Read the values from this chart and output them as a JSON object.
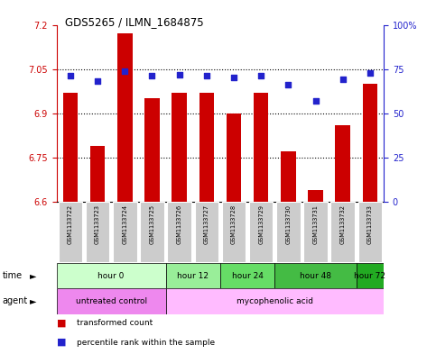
{
  "title": "GDS5265 / ILMN_1684875",
  "samples": [
    "GSM1133722",
    "GSM1133723",
    "GSM1133724",
    "GSM1133725",
    "GSM1133726",
    "GSM1133727",
    "GSM1133728",
    "GSM1133729",
    "GSM1133730",
    "GSM1133731",
    "GSM1133732",
    "GSM1133733"
  ],
  "bar_values": [
    6.97,
    6.79,
    7.17,
    6.95,
    6.97,
    6.97,
    6.9,
    6.97,
    6.77,
    6.64,
    6.86,
    7.0
  ],
  "percentile_values": [
    71,
    68,
    74,
    71,
    72,
    71,
    70,
    71,
    66,
    57,
    69,
    73
  ],
  "bar_color": "#cc0000",
  "percentile_color": "#2222cc",
  "ylim_left": [
    6.6,
    7.2
  ],
  "ylim_right": [
    0,
    100
  ],
  "yticks_left": [
    6.6,
    6.75,
    6.9,
    7.05,
    7.2
  ],
  "yticks_right": [
    0,
    25,
    50,
    75,
    100
  ],
  "ytick_labels_left": [
    "6.6",
    "6.75",
    "6.9",
    "7.05",
    "7.2"
  ],
  "ytick_labels_right": [
    "0",
    "25",
    "50",
    "75",
    "100%"
  ],
  "hlines": [
    6.75,
    6.9,
    7.05
  ],
  "time_groups": [
    {
      "label": "hour 0",
      "start": 0,
      "end": 3,
      "color": "#ccffcc"
    },
    {
      "label": "hour 12",
      "start": 4,
      "end": 5,
      "color": "#99ee99"
    },
    {
      "label": "hour 24",
      "start": 6,
      "end": 7,
      "color": "#66dd66"
    },
    {
      "label": "hour 48",
      "start": 8,
      "end": 10,
      "color": "#44bb44"
    },
    {
      "label": "hour 72",
      "start": 11,
      "end": 11,
      "color": "#22aa22"
    }
  ],
  "agent_groups": [
    {
      "label": "untreated control",
      "start": 0,
      "end": 3,
      "color": "#ee88ee"
    },
    {
      "label": "mycophenolic acid",
      "start": 4,
      "end": 11,
      "color": "#ffbbff"
    }
  ],
  "legend_items": [
    {
      "label": "transformed count",
      "color": "#cc0000"
    },
    {
      "label": "percentile rank within the sample",
      "color": "#2222cc"
    }
  ],
  "bar_width": 0.55,
  "sample_box_color": "#cccccc",
  "background_color": "#ffffff",
  "tick_color_left": "#cc0000",
  "tick_color_right": "#2222cc"
}
